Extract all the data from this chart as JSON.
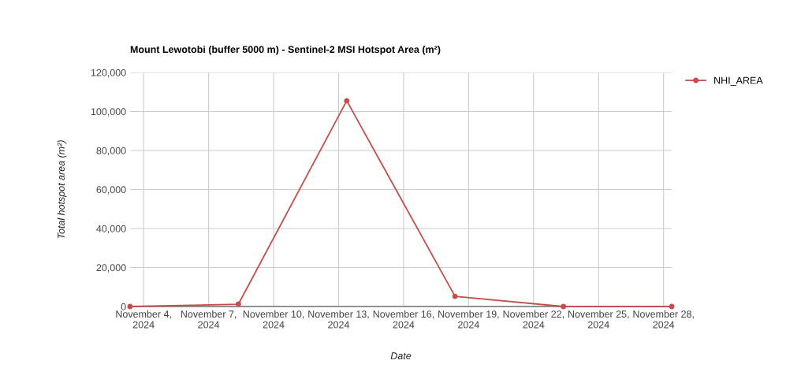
{
  "chart_data": {
    "type": "line",
    "title": "Mount Lewotobi (buffer 5000 m) - Sentinel-2 MSI Hotspot Area (m²)",
    "xlabel": "Date",
    "ylabel": "Total hotspot area (m²)",
    "x": [
      "2024-11-03T09:00",
      "2024-11-08T09:00",
      "2024-11-13T09:00",
      "2024-11-18T09:00",
      "2024-11-23T09:00",
      "2024-11-28T09:00"
    ],
    "series": [
      {
        "name": "NHI_AREA",
        "color": "#c44e4e",
        "values": [
          0,
          1200,
          105500,
          5200,
          0,
          0
        ]
      }
    ],
    "xlim": [
      "2024-11-03T09:00",
      "2024-11-28T09:00"
    ],
    "xticks": [
      {
        "value": "2024-11-04",
        "label": "November 4,\n2024"
      },
      {
        "value": "2024-11-07",
        "label": "November 7,\n2024"
      },
      {
        "value": "2024-11-10",
        "label": "November 10,\n2024"
      },
      {
        "value": "2024-11-13",
        "label": "November 13,\n2024"
      },
      {
        "value": "2024-11-16",
        "label": "November 16,\n2024"
      },
      {
        "value": "2024-11-19",
        "label": "November 19,\n2024"
      },
      {
        "value": "2024-11-22",
        "label": "November 22,\n2024"
      },
      {
        "value": "2024-11-25",
        "label": "November 25,\n2024"
      },
      {
        "value": "2024-11-28",
        "label": "November 28,\n2024"
      }
    ],
    "ylim": [
      0,
      120000
    ],
    "yticks": [
      {
        "value": 0,
        "label": "0"
      },
      {
        "value": 20000,
        "label": "20,000"
      },
      {
        "value": 40000,
        "label": "40,000"
      },
      {
        "value": 60000,
        "label": "60,000"
      },
      {
        "value": 80000,
        "label": "80,000"
      },
      {
        "value": 100000,
        "label": "100,000"
      },
      {
        "value": 120000,
        "label": "120,000"
      }
    ],
    "grid": true,
    "legend": "top right",
    "marker": "circle",
    "line_style": "solid"
  }
}
